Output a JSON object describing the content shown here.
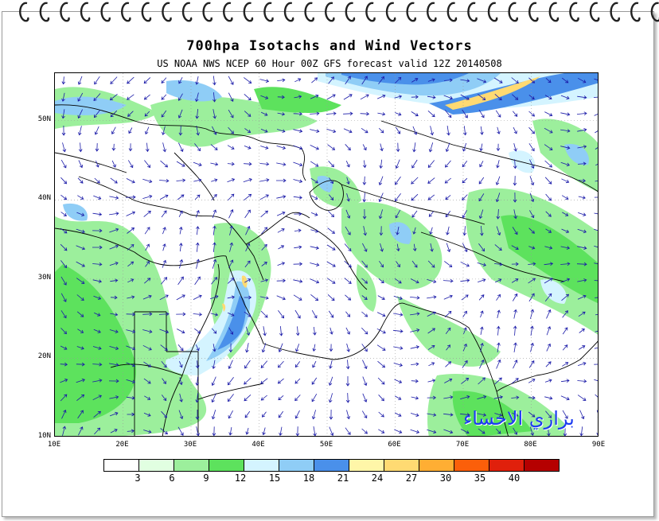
{
  "map": {
    "title": "700hpa Isotachs and Wind Vectors",
    "subtitle": "US NOAA NWS NCEP 60 Hour 00Z GFS forecast valid 12Z 20140508",
    "lat_labels": [
      "50N",
      "40N",
      "30N",
      "20N",
      "10N"
    ],
    "lon_labels": [
      "10E",
      "20E",
      "30E",
      "40E",
      "50E",
      "60E",
      "70E",
      "80E",
      "90E"
    ],
    "lat_range": [
      10,
      56
    ],
    "lon_range": [
      10,
      90
    ],
    "watermark": "براري الاحساء",
    "colors": {
      "ring": "#222222",
      "border": "#000000",
      "vector": "#1a1aa8",
      "watermark": "#1c3cf0"
    }
  },
  "legend": {
    "colors": [
      "#ffffff",
      "#e1ffe1",
      "#9cef9c",
      "#5de25d",
      "#d4f4ff",
      "#8fcdf6",
      "#4a90ea",
      "#fff6a8",
      "#ffda72",
      "#ffae33",
      "#fb5f0a",
      "#e0200c",
      "#b50000"
    ],
    "labels": [
      "3",
      "6",
      "9",
      "12",
      "15",
      "18",
      "21",
      "24",
      "27",
      "30",
      "35",
      "40"
    ]
  }
}
